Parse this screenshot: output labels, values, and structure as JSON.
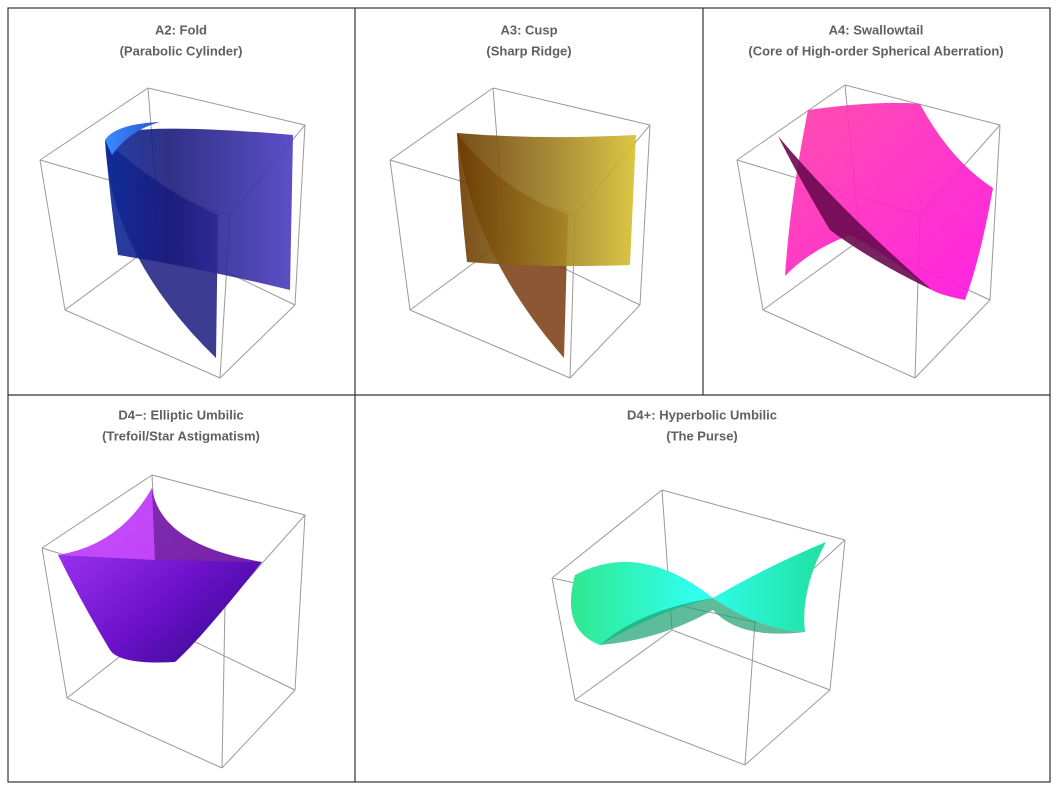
{
  "panels": [
    {
      "title": "A2: Fold",
      "subtitle": "(Parabolic Cylinder)"
    },
    {
      "title": "A3: Cusp",
      "subtitle": "(Sharp Ridge)"
    },
    {
      "title": "A4: Swallowtail",
      "subtitle": "(Core of High-order Spherical Aberration)"
    },
    {
      "title": "D4−: Elliptic Umbilic",
      "subtitle": "(Trefoil/Star Astigmatism)"
    },
    {
      "title": "D4+: Hyperbolic Umbilic",
      "subtitle": "(The Purse)"
    }
  ]
}
